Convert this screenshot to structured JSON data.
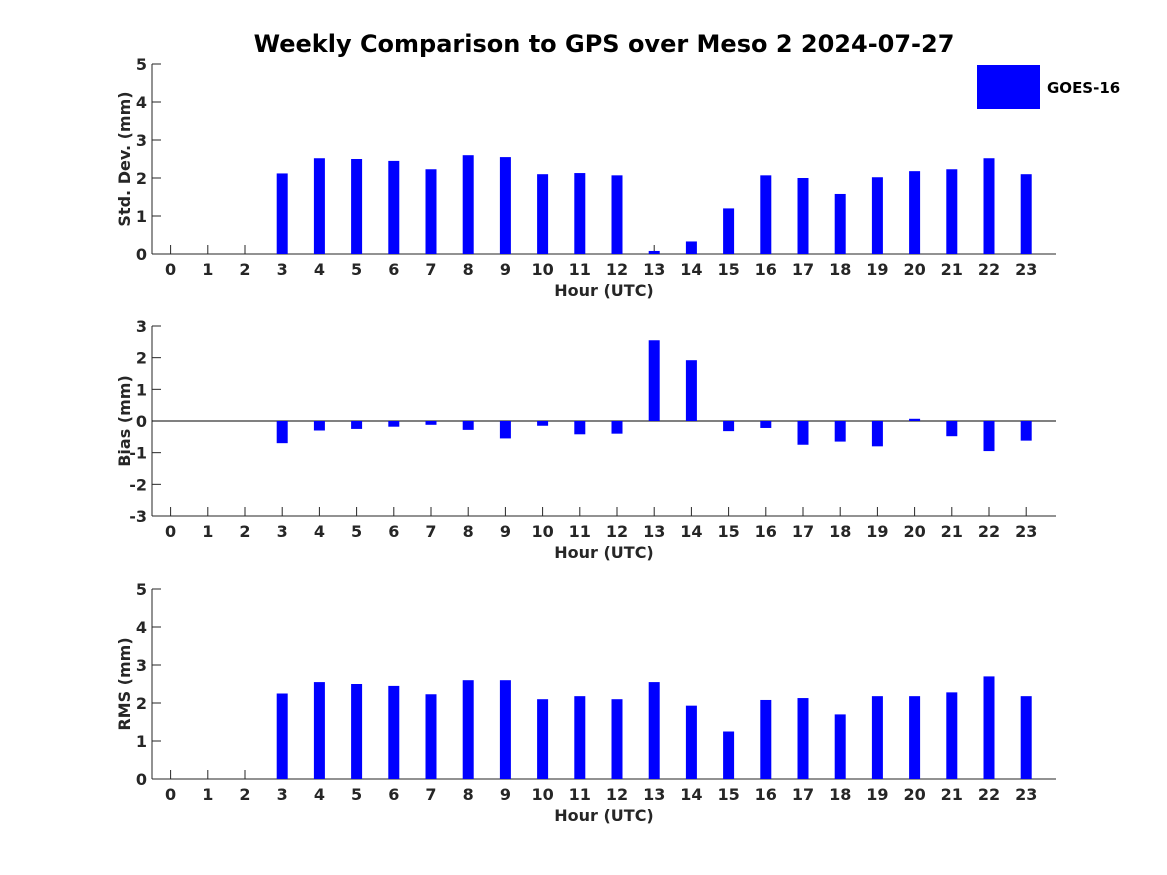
{
  "title": "Weekly Comparison to GPS over Meso 2 2024-07-27",
  "legend": {
    "label": "GOES-16",
    "color": "#0000ff"
  },
  "bar_color": "#0000ff",
  "chart_data": [
    {
      "type": "bar",
      "name": "std",
      "xlabel": "Hour (UTC)",
      "ylabel": "Std. Dev. (mm)",
      "ylim": [
        0,
        5
      ],
      "yticks": [
        0,
        1,
        2,
        3,
        4,
        5
      ],
      "categories": [
        "0",
        "1",
        "2",
        "3",
        "4",
        "5",
        "6",
        "7",
        "8",
        "9",
        "10",
        "11",
        "12",
        "13",
        "14",
        "15",
        "16",
        "17",
        "18",
        "19",
        "20",
        "21",
        "22",
        "23"
      ],
      "series": [
        {
          "name": "GOES-16",
          "values": [
            0,
            0,
            0,
            2.12,
            2.52,
            2.5,
            2.45,
            2.23,
            2.6,
            2.55,
            2.1,
            2.13,
            2.07,
            0.08,
            0.33,
            1.2,
            2.07,
            2.0,
            1.58,
            2.02,
            2.18,
            2.23,
            2.52,
            2.1
          ]
        }
      ]
    },
    {
      "type": "bar",
      "name": "bias",
      "xlabel": "Hour (UTC)",
      "ylabel": "Bias (mm)",
      "ylim": [
        -3,
        3
      ],
      "yticks": [
        -3,
        -2,
        -1,
        0,
        1,
        2,
        3
      ],
      "zero_line": true,
      "categories": [
        "0",
        "1",
        "2",
        "3",
        "4",
        "5",
        "6",
        "7",
        "8",
        "9",
        "10",
        "11",
        "12",
        "13",
        "14",
        "15",
        "16",
        "17",
        "18",
        "19",
        "20",
        "21",
        "22",
        "23"
      ],
      "series": [
        {
          "name": "GOES-16",
          "values": [
            0,
            0,
            0,
            -0.7,
            -0.3,
            -0.25,
            -0.18,
            -0.12,
            -0.28,
            -0.55,
            -0.15,
            -0.42,
            -0.4,
            2.55,
            1.92,
            -0.32,
            -0.22,
            -0.75,
            -0.65,
            -0.8,
            0.07,
            -0.48,
            -0.95,
            -0.62
          ]
        }
      ]
    },
    {
      "type": "bar",
      "name": "rms",
      "xlabel": "Hour (UTC)",
      "ylabel": "RMS (mm)",
      "ylim": [
        0,
        5
      ],
      "yticks": [
        0,
        1,
        2,
        3,
        4,
        5
      ],
      "categories": [
        "0",
        "1",
        "2",
        "3",
        "4",
        "5",
        "6",
        "7",
        "8",
        "9",
        "10",
        "11",
        "12",
        "13",
        "14",
        "15",
        "16",
        "17",
        "18",
        "19",
        "20",
        "21",
        "22",
        "23"
      ],
      "series": [
        {
          "name": "GOES-16",
          "values": [
            0,
            0,
            0,
            2.25,
            2.55,
            2.5,
            2.45,
            2.23,
            2.6,
            2.6,
            2.1,
            2.18,
            2.1,
            2.55,
            1.93,
            1.25,
            2.08,
            2.13,
            1.7,
            2.18,
            2.18,
            2.28,
            2.7,
            2.18
          ]
        }
      ]
    }
  ]
}
